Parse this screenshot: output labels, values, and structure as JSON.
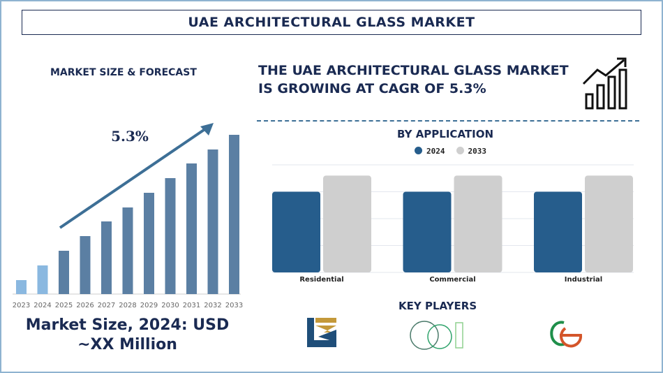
{
  "header": {
    "title": "UAE ARCHITECTURAL GLASS MARKET"
  },
  "left": {
    "subtitle": "MARKET SIZE & FORECAST",
    "cagr_label": "5.3%",
    "market_size_line1": "Market Size, 2024: USD",
    "market_size_line2": "~XX Million"
  },
  "right": {
    "headline_line1": "THE UAE ARCHITECTURAL GLASS MARKET",
    "headline_line2": "IS GROWING AT CAGR OF 5.3%",
    "icon": "growth-chart-icon",
    "key_players_title": "KEY PLAYERS"
  },
  "chart_data": [
    {
      "type": "bar",
      "title": "",
      "categories": [
        "2023",
        "2024",
        "2025",
        "2026",
        "2027",
        "2028",
        "2029",
        "2030",
        "2031",
        "2032",
        "2033"
      ],
      "values": [
        20,
        41,
        62,
        83,
        104,
        124,
        145,
        166,
        187,
        207,
        228
      ],
      "colors": {
        "historical": "#8ab8e0",
        "forecast": "#5b7fa3",
        "arrow": "#3d6f96"
      },
      "annotation": "5.3%",
      "grid": false
    },
    {
      "type": "bar",
      "title": "BY APPLICATION",
      "categories": [
        "Residential",
        "Commercial",
        "Industrial"
      ],
      "series": [
        {
          "name": "2024",
          "values": [
            3,
            3,
            3
          ],
          "color": "#265d8c"
        },
        {
          "name": "2033",
          "values": [
            3.6,
            3.6,
            3.6
          ],
          "color": "#cfcfcf"
        }
      ],
      "ylim": [
        0,
        4
      ],
      "grid": true,
      "legend": "top"
    }
  ]
}
